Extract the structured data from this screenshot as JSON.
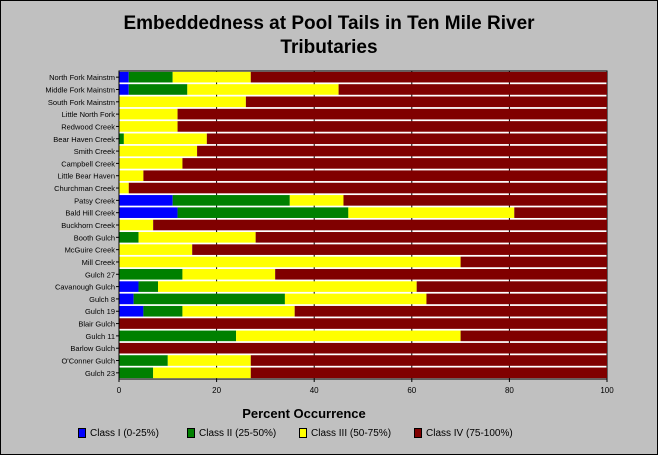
{
  "title_line1": "Embeddedness at Pool Tails in Ten Mile River",
  "title_line2": "Tributaries",
  "chart_data": {
    "type": "bar",
    "orientation": "horizontal",
    "stacked": true,
    "title": "Embeddedness at Pool Tails in Ten Mile River Tributaries",
    "xlabel": "Percent Occurrence",
    "ylabel": "",
    "xlim": [
      0,
      100
    ],
    "xticks": [
      0,
      20,
      40,
      60,
      80,
      100
    ],
    "grid": "vertical",
    "legend_placement": "bottom",
    "categories": [
      "North Fork Mainstm",
      "Middle Fork Mainstm",
      "South Fork Mainstm",
      "Little North Fork",
      "Redwood Creek",
      "Bear Haven Creek",
      "Smith Creek",
      "Campbell Creek",
      "Little Bear Haven",
      "Churchman Creek",
      "Patsy Creek",
      "Bald Hill Creek",
      "Buckhorn Creek",
      "Booth Gulch",
      "McGuire Creek",
      "Mill Creek",
      "Gulch 27",
      "Cavanough Gulch",
      "Gulch 8",
      "Gulch 19",
      "Blair Gulch",
      "Gulch 11",
      "Barlow Gulch",
      "O'Conner Gulch",
      "Gulch 23"
    ],
    "series": [
      {
        "name": "Class I (0-25%)",
        "color": "#0000ff",
        "values": [
          2,
          2,
          0,
          0,
          0,
          0,
          0,
          0,
          0,
          0,
          11,
          12,
          0,
          0,
          0,
          0,
          0,
          4,
          3,
          5,
          0,
          0,
          0,
          0,
          0
        ]
      },
      {
        "name": "Class II (25-50%)",
        "color": "#008000",
        "values": [
          9,
          12,
          0,
          0,
          0,
          1,
          0,
          0,
          0,
          0,
          24,
          35,
          0,
          4,
          0,
          0,
          13,
          4,
          31,
          8,
          0,
          24,
          0,
          10,
          7
        ]
      },
      {
        "name": "Class III (50-75%)",
        "color": "#ffff00",
        "values": [
          16,
          31,
          26,
          12,
          12,
          17,
          16,
          13,
          5,
          2,
          11,
          34,
          7,
          24,
          15,
          70,
          19,
          53,
          29,
          23,
          0,
          46,
          0,
          17,
          20
        ]
      },
      {
        "name": "Class IV (75-100%)",
        "color": "#800000",
        "values": [
          73,
          55,
          74,
          88,
          88,
          82,
          84,
          87,
          95,
          98,
          54,
          19,
          93,
          72,
          85,
          30,
          68,
          39,
          37,
          64,
          100,
          30,
          100,
          73,
          73
        ]
      }
    ]
  }
}
